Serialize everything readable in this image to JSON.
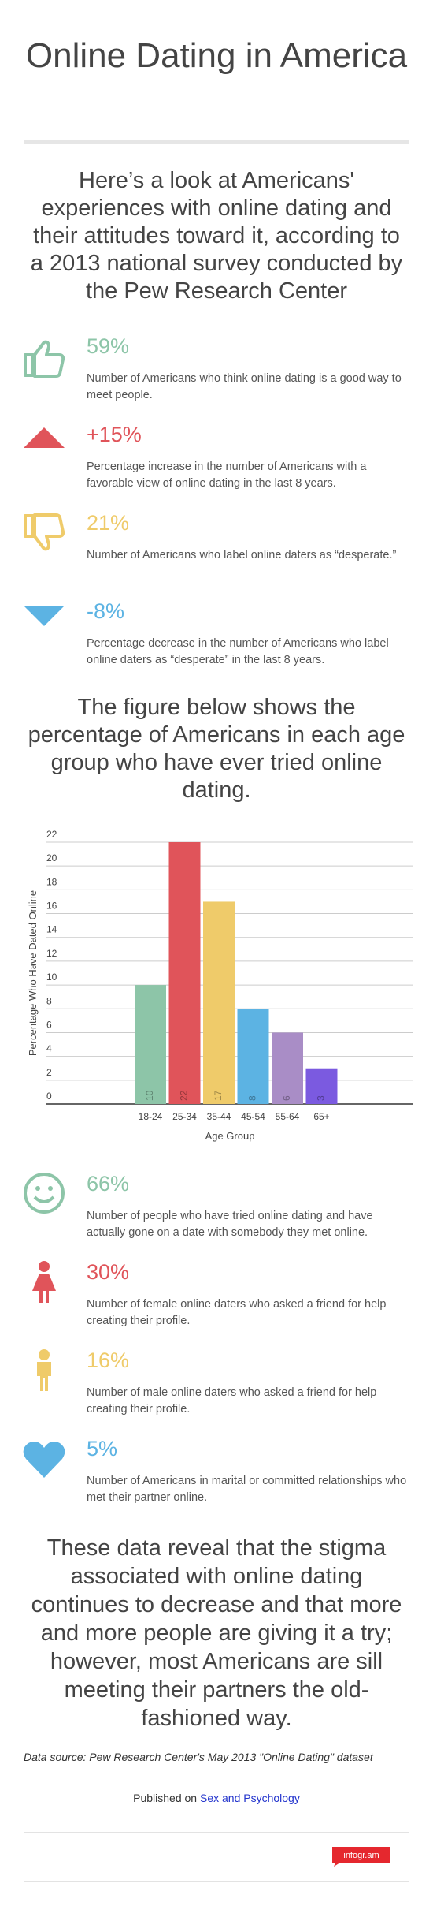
{
  "title": "Online Dating in America",
  "intro": "Here’s a look at Americans' experiences with online dating and their attitudes toward it, according to a 2013 national survey conducted by the Pew Research Center",
  "stats": [
    {
      "value": "59%",
      "text": "Number of Americans who think online dating is a good way to meet people."
    },
    {
      "value": "+15%",
      "text": "Percentage increase in the number of Americans with a favorable view of online dating in the last 8 years."
    },
    {
      "value": "21%",
      "text": "Number of Americans who label online daters as “desperate.”"
    },
    {
      "value": "-8%",
      "text": "Percentage decrease in the number of Americans who label online daters as “desperate” in the last 8 years."
    }
  ],
  "figure_intro": "The figure below shows the percentage of Americans in each age group who have ever tried online dating.",
  "chart_data": {
    "type": "bar",
    "categories": [
      "18-24",
      "25-34",
      "35-44",
      "45-54",
      "55-64",
      "65+"
    ],
    "values": [
      10,
      22,
      17,
      8,
      6,
      3
    ],
    "colors": [
      "#8dc5a8",
      "#e0545a",
      "#efcb6a",
      "#5cb3e3",
      "#a98dc6",
      "#7b5ae0"
    ],
    "y_label": "Percentage Who Have Dated Online",
    "x_label": "Age Group",
    "ylim": [
      0,
      22
    ],
    "yticks": [
      0,
      2,
      4,
      6,
      8,
      10,
      12,
      14,
      16,
      18,
      20,
      22
    ],
    "grid": true
  },
  "stats2": [
    {
      "value": "66%",
      "text": "Number of people who have tried online dating and have actually gone on a date with somebody they met online."
    },
    {
      "value": "30%",
      "text": "Number of female online daters who asked a friend for help creating their profile."
    },
    {
      "value": "16%",
      "text": "Number of male online daters who asked a friend for help creating their profile."
    },
    {
      "value": "5%",
      "text": "Number of Americans in marital or committed relationships who met their partner online."
    }
  ],
  "conclusion": "These data reveal that the stigma associated with online dating continues to decrease and that more and more people are giving it a try; however, most Americans are sill meeting their partners the old-fashioned way.",
  "source": "Data source: Pew Research Center's May 2013 \"Online Dating\" dataset",
  "published": {
    "prefix": "Published on",
    "link": "Sex and Psychology"
  },
  "logo": "infogr.am"
}
